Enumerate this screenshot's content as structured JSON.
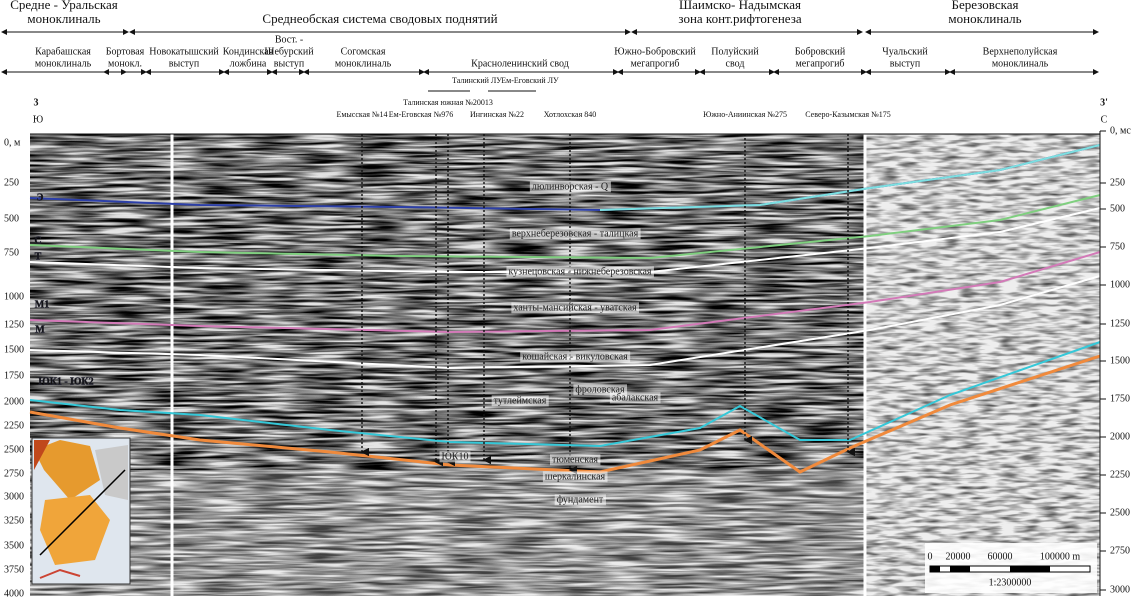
{
  "header": {
    "zones": [
      {
        "lines": [
          "Средне - Уральская",
          "моноклиналь"
        ]
      },
      {
        "lines": [
          "Среднеобская система сводовых поднятий"
        ]
      },
      {
        "lines": [
          "Шаимско- Надымская",
          "зона конт.рифтогенеза"
        ]
      },
      {
        "lines": [
          "Березовская",
          "моноклиналь"
        ]
      }
    ],
    "subzones": [
      {
        "lines": [
          "Карабашская",
          "моноклиналь"
        ]
      },
      {
        "lines": [
          "Бортовая",
          "монокл."
        ]
      },
      {
        "lines": [
          "Новокатышский",
          "выступ"
        ]
      },
      {
        "lines": [
          "Кондинская",
          "ложбина"
        ]
      },
      {
        "lines": [
          "Вост. -",
          "Шебурский",
          "выступ"
        ]
      },
      {
        "lines": [
          "Согомская",
          "моноклиналь"
        ]
      },
      {
        "lines": [
          "Красноленинский свод"
        ]
      },
      {
        "lines": [
          "Южно-Бобровский",
          "мегапрогиб"
        ]
      },
      {
        "lines": [
          "Полуйский",
          "свод"
        ]
      },
      {
        "lines": [
          "Бобровский",
          "мегапрогиб"
        ]
      },
      {
        "lines": [
          "Чуальский",
          "выступ"
        ]
      },
      {
        "lines": [
          "Верхнеполуйская",
          "моноклиналь"
        ]
      }
    ]
  },
  "profile": {
    "start": "3",
    "end": "3'",
    "start_dir": "Ю",
    "end_dir": "С"
  },
  "license_areas": [
    "Талинский ЛУ",
    "Ем-Еговский ЛУ"
  ],
  "wells": [
    "Емысская №14",
    "Ем-Еговская №976",
    "Талинская южная №20013",
    "Ингинская №22",
    "Хотлохская 840",
    "Южно-Аниинская №275",
    "Северо-Казымская №175"
  ],
  "left_axis": {
    "ticks": [
      "0, м",
      "250",
      "500",
      "750",
      "1000",
      "1250",
      "1500",
      "1750",
      "2000",
      "2250",
      "2500",
      "2750",
      "3000",
      "3250",
      "3500",
      "3750",
      "4000"
    ]
  },
  "right_axis": {
    "ticks": [
      "0, мс",
      "250",
      "500",
      "750",
      "1000",
      "1250",
      "1500",
      "1750",
      "2000",
      "2250",
      "2500",
      "2750",
      "3000"
    ]
  },
  "left_labels": [
    "Э",
    "С",
    "Т",
    "М1",
    "М",
    "ЮК1 - ЮК2"
  ],
  "horizons": [
    "люлинворская - Q",
    "верхнеберезовская - талицкая",
    "кузнецовская - нижнеберезовская",
    "ханты-мансийская - уватская",
    "кошайская - викуловская",
    "фроловская",
    "тутлеймская",
    "абалакская",
    "ЮК10",
    "тюменская",
    "шеркалинская",
    "фундамент"
  ],
  "scale": {
    "ticks": [
      "0",
      "20000",
      "60000",
      "100000 m"
    ],
    "ratio": "1:2300000"
  }
}
